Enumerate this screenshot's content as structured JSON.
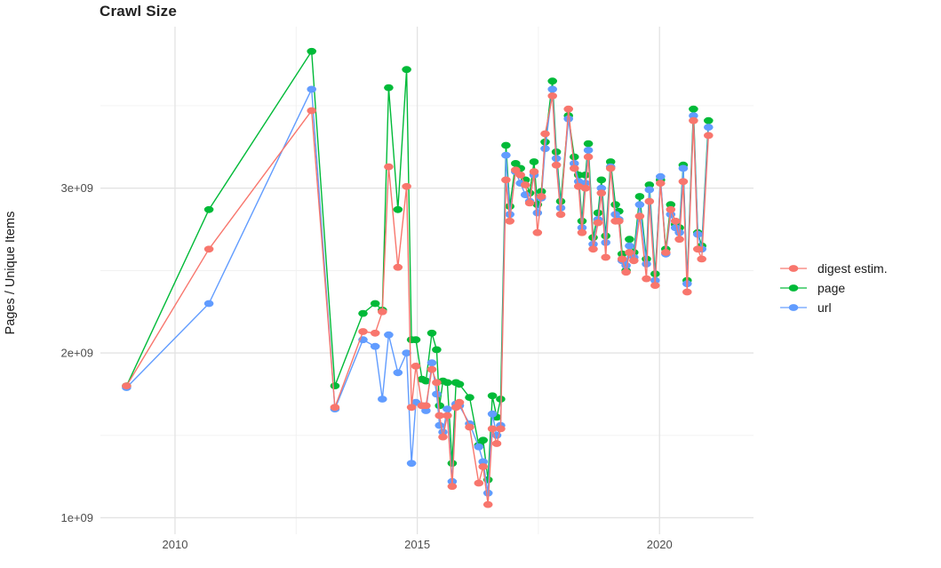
{
  "title": "Crawl Size",
  "y_axis_title": "Pages / Unique Items",
  "colors": {
    "digest": "#F8766D",
    "page": "#00BA38",
    "url": "#619CFF",
    "grid_major": "#E3E3E3",
    "grid_minor": "#F0F0F0",
    "axis_text": "#4D4D4D",
    "title_text": "#222222"
  },
  "legend": {
    "items": [
      {
        "label": "digest estim.",
        "series": "digest estim.",
        "color": "#F8766D"
      },
      {
        "label": "page",
        "series": "page",
        "color": "#00BA38"
      },
      {
        "label": "url",
        "series": "url",
        "color": "#619CFF"
      }
    ]
  },
  "chart_data": {
    "type": "line",
    "title": "Crawl Size",
    "xlabel": "",
    "ylabel": "Pages / Unique Items",
    "legend_position": "right",
    "grid": true,
    "value_unit": 1000000000.0,
    "xlim": [
      2008.46,
      2021.94
    ],
    "ylim": [
      900000000.0,
      3980000000.0
    ],
    "x_ticks": {
      "major": [
        2010,
        2015,
        2020
      ],
      "minor": [
        2012.5,
        2017.5
      ],
      "labels": [
        "2010",
        "2015",
        "2020"
      ]
    },
    "y_ticks": {
      "major": [
        1000000000.0,
        2000000000.0,
        3000000000.0
      ],
      "minor": [
        1500000000.0,
        2500000000.0,
        3500000000.0
      ],
      "labels": [
        "1e+09",
        "2e+09",
        "3e+09"
      ]
    },
    "x": [
      2009.0,
      2010.7,
      2012.82,
      2013.3,
      2013.88,
      2014.13,
      2014.28,
      2014.41,
      2014.6,
      2014.78,
      2014.88,
      2014.97,
      2015.1,
      2015.18,
      2015.3,
      2015.4,
      2015.46,
      2015.53,
      2015.62,
      2015.72,
      2015.8,
      2015.87,
      2016.08,
      2016.27,
      2016.36,
      2016.46,
      2016.55,
      2016.64,
      2016.72,
      2016.83,
      2016.91,
      2017.03,
      2017.13,
      2017.23,
      2017.32,
      2017.41,
      2017.48,
      2017.56,
      2017.64,
      2017.79,
      2017.87,
      2017.96,
      2018.12,
      2018.24,
      2018.33,
      2018.4,
      2018.47,
      2018.53,
      2018.63,
      2018.73,
      2018.8,
      2018.89,
      2018.99,
      2019.09,
      2019.16,
      2019.23,
      2019.31,
      2019.38,
      2019.47,
      2019.59,
      2019.73,
      2019.79,
      2019.91,
      2020.02,
      2020.13,
      2020.23,
      2020.33,
      2020.41,
      2020.49,
      2020.57,
      2020.7,
      2020.79,
      2020.87,
      2021.01
    ],
    "series": [
      {
        "name": "digest estim.",
        "color": "#F8766D",
        "values": [
          1.8,
          2.63,
          3.47,
          1.67,
          2.13,
          2.12,
          2.25,
          3.13,
          2.52,
          3.01,
          1.67,
          1.92,
          1.68,
          1.68,
          1.9,
          1.82,
          1.62,
          1.49,
          1.62,
          1.19,
          1.67,
          1.7,
          1.55,
          1.21,
          1.31,
          1.08,
          1.54,
          1.45,
          1.54,
          3.05,
          2.8,
          3.11,
          3.08,
          3.02,
          2.91,
          3.1,
          2.73,
          2.95,
          3.33,
          3.56,
          3.14,
          2.84,
          3.48,
          3.12,
          3.01,
          2.73,
          3.0,
          3.19,
          2.63,
          2.79,
          2.97,
          2.58,
          3.12,
          2.8,
          2.8,
          2.57,
          2.49,
          2.61,
          2.56,
          2.83,
          2.45,
          2.92,
          2.41,
          3.03,
          2.61,
          2.87,
          2.8,
          2.69,
          3.04,
          2.37,
          3.41,
          2.63,
          2.57,
          3.32
        ]
      },
      {
        "name": "page",
        "color": "#00BA38",
        "values": [
          1.8,
          2.87,
          3.83,
          1.8,
          2.24,
          2.3,
          2.26,
          3.61,
          2.87,
          3.72,
          2.08,
          2.08,
          1.84,
          1.83,
          2.12,
          2.02,
          1.68,
          1.83,
          1.82,
          1.33,
          1.82,
          1.81,
          1.73,
          1.44,
          1.47,
          1.23,
          1.74,
          1.61,
          1.72,
          3.26,
          2.89,
          3.15,
          3.12,
          3.05,
          2.97,
          3.16,
          2.9,
          2.98,
          3.28,
          3.65,
          3.22,
          2.92,
          3.44,
          3.19,
          3.08,
          2.8,
          3.08,
          3.27,
          2.7,
          2.85,
          3.05,
          2.71,
          3.16,
          2.9,
          2.86,
          2.6,
          2.5,
          2.69,
          2.61,
          2.95,
          2.57,
          3.02,
          2.48,
          3.05,
          2.63,
          2.9,
          2.78,
          2.76,
          3.14,
          2.44,
          3.48,
          2.73,
          2.65,
          3.41
        ]
      },
      {
        "name": "url",
        "color": "#619CFF",
        "values": [
          1.79,
          2.3,
          3.6,
          1.66,
          2.08,
          2.04,
          1.72,
          2.11,
          1.88,
          2.0,
          1.33,
          1.7,
          1.68,
          1.65,
          1.94,
          1.75,
          1.56,
          1.52,
          1.66,
          1.22,
          1.69,
          1.68,
          1.57,
          1.43,
          1.34,
          1.15,
          1.63,
          1.5,
          1.56,
          3.2,
          2.84,
          3.1,
          3.03,
          2.96,
          2.92,
          3.08,
          2.85,
          2.94,
          3.24,
          3.6,
          3.18,
          2.88,
          3.42,
          3.15,
          3.04,
          2.76,
          3.03,
          3.23,
          2.66,
          2.81,
          3.0,
          2.67,
          3.13,
          2.84,
          2.81,
          2.56,
          2.53,
          2.65,
          2.58,
          2.9,
          2.54,
          2.99,
          2.44,
          3.07,
          2.6,
          2.84,
          2.76,
          2.73,
          3.12,
          2.42,
          3.44,
          2.72,
          2.63,
          3.37
        ]
      }
    ]
  }
}
